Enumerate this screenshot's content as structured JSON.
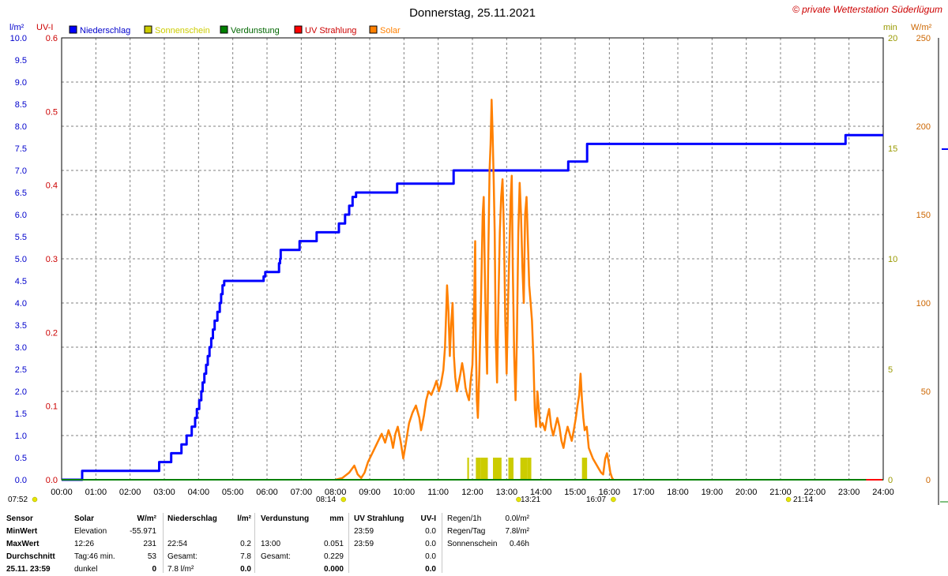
{
  "title": "Donnerstag, 25.11.2021",
  "copyright": "© private Wetterstation Süderlügum",
  "axes": {
    "left_unit_1": "l/m²",
    "left_unit_2": "UV-I",
    "right_unit_1": "min",
    "right_unit_2": "W/m²",
    "rain_ticks": [
      "0.0",
      "0.5",
      "1.0",
      "1.5",
      "2.0",
      "2.5",
      "3.0",
      "3.5",
      "4.0",
      "4.5",
      "5.0",
      "5.5",
      "6.0",
      "6.5",
      "7.0",
      "7.5",
      "8.0",
      "8.5",
      "9.0",
      "9.5",
      "10.0"
    ],
    "uv_ticks": [
      "0.0",
      "0.1",
      "0.2",
      "0.3",
      "0.4",
      "0.5",
      "0.6"
    ],
    "sun_ticks": [
      "0",
      "5",
      "10",
      "15",
      "20"
    ],
    "solar_ticks": [
      "0",
      "50",
      "100",
      "150",
      "200",
      "250"
    ],
    "time_ticks": [
      "00:00",
      "01:00",
      "02:00",
      "03:00",
      "04:00",
      "05:00",
      "06:00",
      "07:00",
      "08:00",
      "09:00",
      "10:00",
      "11:00",
      "12:00",
      "13:00",
      "14:00",
      "15:00",
      "16:00",
      "17:00",
      "18:00",
      "19:00",
      "20:00",
      "21:00",
      "22:00",
      "23:00",
      "24:00"
    ],
    "colors": {
      "rain": "#0000ff",
      "sunshine": "#cccc00",
      "evaporation": "#008000",
      "uv": "#ff0000",
      "solar": "#ff8000",
      "left_axis_rain": "#0000cc",
      "left_axis_uv": "#cc0000",
      "right_axis_sun": "#999900",
      "right_axis_solar": "#cc6600"
    }
  },
  "legend": [
    {
      "label": "Niederschlag",
      "color": "#0000ff"
    },
    {
      "label": "Sonnenschein",
      "color": "#cccc00"
    },
    {
      "label": "Verdunstung",
      "color": "#008000"
    },
    {
      "label": "UV Strahlung",
      "color": "#ff0000"
    },
    {
      "label": "Solar",
      "color": "#ff8000"
    }
  ],
  "sun_events": [
    {
      "label": "07:52",
      "time": 7.867
    },
    {
      "label": "08:14",
      "time": 8.233
    },
    {
      "label": "13:21",
      "time": 13.35
    },
    {
      "label": "16:07",
      "time": 16.117
    },
    {
      "label": "21:14",
      "time": 21.233
    }
  ],
  "chart_data": {
    "type": "line",
    "x_unit": "hour of day",
    "x_range": [
      0,
      24
    ],
    "series": [
      {
        "name": "Niederschlag",
        "axis": "rain",
        "ylim": [
          0,
          10
        ],
        "step": true,
        "points": [
          [
            0,
            0
          ],
          [
            0.6,
            0
          ],
          [
            0.6,
            0.2
          ],
          [
            2.85,
            0.2
          ],
          [
            2.85,
            0.4
          ],
          [
            3.2,
            0.4
          ],
          [
            3.2,
            0.6
          ],
          [
            3.5,
            0.6
          ],
          [
            3.5,
            0.8
          ],
          [
            3.65,
            0.8
          ],
          [
            3.65,
            1.0
          ],
          [
            3.8,
            1.0
          ],
          [
            3.8,
            1.2
          ],
          [
            3.9,
            1.2
          ],
          [
            3.9,
            1.4
          ],
          [
            3.95,
            1.4
          ],
          [
            3.95,
            1.6
          ],
          [
            4.02,
            1.6
          ],
          [
            4.02,
            1.8
          ],
          [
            4.08,
            1.8
          ],
          [
            4.08,
            2.0
          ],
          [
            4.12,
            2.0
          ],
          [
            4.12,
            2.2
          ],
          [
            4.17,
            2.2
          ],
          [
            4.17,
            2.4
          ],
          [
            4.22,
            2.4
          ],
          [
            4.22,
            2.6
          ],
          [
            4.27,
            2.6
          ],
          [
            4.27,
            2.8
          ],
          [
            4.32,
            2.8
          ],
          [
            4.32,
            3.0
          ],
          [
            4.37,
            3.0
          ],
          [
            4.37,
            3.2
          ],
          [
            4.42,
            3.2
          ],
          [
            4.42,
            3.4
          ],
          [
            4.47,
            3.4
          ],
          [
            4.47,
            3.6
          ],
          [
            4.55,
            3.6
          ],
          [
            4.55,
            3.8
          ],
          [
            4.62,
            3.8
          ],
          [
            4.62,
            4.0
          ],
          [
            4.66,
            4.0
          ],
          [
            4.66,
            4.2
          ],
          [
            4.7,
            4.2
          ],
          [
            4.7,
            4.4
          ],
          [
            4.75,
            4.4
          ],
          [
            4.75,
            4.5
          ],
          [
            5.9,
            4.5
          ],
          [
            5.9,
            4.6
          ],
          [
            5.95,
            4.6
          ],
          [
            5.95,
            4.7
          ],
          [
            6.35,
            4.7
          ],
          [
            6.35,
            4.9
          ],
          [
            6.38,
            4.9
          ],
          [
            6.38,
            5.0
          ],
          [
            6.4,
            5.0
          ],
          [
            6.4,
            5.2
          ],
          [
            6.95,
            5.2
          ],
          [
            6.95,
            5.4
          ],
          [
            7.45,
            5.4
          ],
          [
            7.45,
            5.6
          ],
          [
            8.1,
            5.6
          ],
          [
            8.1,
            5.8
          ],
          [
            8.28,
            5.8
          ],
          [
            8.28,
            6.0
          ],
          [
            8.4,
            6.0
          ],
          [
            8.4,
            6.2
          ],
          [
            8.5,
            6.2
          ],
          [
            8.5,
            6.4
          ],
          [
            8.6,
            6.4
          ],
          [
            8.6,
            6.5
          ],
          [
            9.8,
            6.5
          ],
          [
            9.8,
            6.7
          ],
          [
            11.45,
            6.7
          ],
          [
            11.45,
            7.0
          ],
          [
            14.8,
            7.0
          ],
          [
            14.8,
            7.2
          ],
          [
            15.35,
            7.2
          ],
          [
            15.35,
            7.6
          ],
          [
            22.9,
            7.6
          ],
          [
            22.9,
            7.8
          ],
          [
            24,
            7.8
          ]
        ]
      },
      {
        "name": "Solar",
        "axis": "solar",
        "ylim": [
          0,
          250
        ],
        "points": [
          [
            8.0,
            0
          ],
          [
            8.2,
            1
          ],
          [
            8.4,
            4
          ],
          [
            8.55,
            8
          ],
          [
            8.65,
            3
          ],
          [
            8.75,
            1
          ],
          [
            8.85,
            4
          ],
          [
            8.95,
            10
          ],
          [
            9.05,
            14
          ],
          [
            9.15,
            18
          ],
          [
            9.25,
            22
          ],
          [
            9.35,
            26
          ],
          [
            9.45,
            21
          ],
          [
            9.55,
            28
          ],
          [
            9.62,
            24
          ],
          [
            9.68,
            18
          ],
          [
            9.75,
            26
          ],
          [
            9.82,
            30
          ],
          [
            9.9,
            22
          ],
          [
            9.98,
            12
          ],
          [
            10.05,
            20
          ],
          [
            10.15,
            32
          ],
          [
            10.25,
            38
          ],
          [
            10.35,
            42
          ],
          [
            10.45,
            35
          ],
          [
            10.5,
            28
          ],
          [
            10.58,
            36
          ],
          [
            10.65,
            45
          ],
          [
            10.72,
            50
          ],
          [
            10.8,
            48
          ],
          [
            10.88,
            52
          ],
          [
            10.95,
            56
          ],
          [
            11.02,
            50
          ],
          [
            11.08,
            54
          ],
          [
            11.15,
            62
          ],
          [
            11.2,
            75
          ],
          [
            11.23,
            92
          ],
          [
            11.26,
            110
          ],
          [
            11.3,
            95
          ],
          [
            11.34,
            70
          ],
          [
            11.38,
            88
          ],
          [
            11.42,
            100
          ],
          [
            11.46,
            70
          ],
          [
            11.5,
            58
          ],
          [
            11.55,
            50
          ],
          [
            11.6,
            55
          ],
          [
            11.65,
            60
          ],
          [
            11.7,
            66
          ],
          [
            11.75,
            60
          ],
          [
            11.8,
            52
          ],
          [
            11.85,
            48
          ],
          [
            11.9,
            45
          ],
          [
            11.95,
            56
          ],
          [
            12.0,
            65
          ],
          [
            12.05,
            100
          ],
          [
            12.08,
            135
          ],
          [
            12.1,
            80
          ],
          [
            12.13,
            45
          ],
          [
            12.16,
            35
          ],
          [
            12.2,
            60
          ],
          [
            12.25,
            100
          ],
          [
            12.3,
            150
          ],
          [
            12.33,
            160
          ],
          [
            12.36,
            120
          ],
          [
            12.4,
            80
          ],
          [
            12.43,
            60
          ],
          [
            12.46,
            120
          ],
          [
            12.5,
            175
          ],
          [
            12.53,
            190
          ],
          [
            12.56,
            215
          ],
          [
            12.59,
            195
          ],
          [
            12.62,
            170
          ],
          [
            12.65,
            140
          ],
          [
            12.68,
            80
          ],
          [
            12.72,
            55
          ],
          [
            12.76,
            100
          ],
          [
            12.8,
            140
          ],
          [
            12.84,
            160
          ],
          [
            12.88,
            170
          ],
          [
            12.92,
            140
          ],
          [
            12.96,
            90
          ],
          [
            13.0,
            60
          ],
          [
            13.04,
            100
          ],
          [
            13.08,
            130
          ],
          [
            13.12,
            160
          ],
          [
            13.15,
            172
          ],
          [
            13.18,
            120
          ],
          [
            13.22,
            70
          ],
          [
            13.26,
            45
          ],
          [
            13.3,
            80
          ],
          [
            13.34,
            140
          ],
          [
            13.38,
            168
          ],
          [
            13.42,
            150
          ],
          [
            13.46,
            120
          ],
          [
            13.5,
            100
          ],
          [
            13.54,
            150
          ],
          [
            13.58,
            160
          ],
          [
            13.62,
            135
          ],
          [
            13.66,
            110
          ],
          [
            13.7,
            100
          ],
          [
            13.74,
            90
          ],
          [
            13.78,
            70
          ],
          [
            13.82,
            40
          ],
          [
            13.86,
            30
          ],
          [
            13.9,
            50
          ],
          [
            13.94,
            40
          ],
          [
            13.98,
            30
          ],
          [
            14.05,
            32
          ],
          [
            14.12,
            28
          ],
          [
            14.18,
            35
          ],
          [
            14.24,
            40
          ],
          [
            14.3,
            30
          ],
          [
            14.36,
            25
          ],
          [
            14.42,
            30
          ],
          [
            14.48,
            35
          ],
          [
            14.54,
            30
          ],
          [
            14.6,
            22
          ],
          [
            14.66,
            18
          ],
          [
            14.72,
            25
          ],
          [
            14.78,
            30
          ],
          [
            14.84,
            26
          ],
          [
            14.9,
            22
          ],
          [
            14.96,
            28
          ],
          [
            15.02,
            35
          ],
          [
            15.07,
            42
          ],
          [
            15.12,
            48
          ],
          [
            15.16,
            60
          ],
          [
            15.2,
            45
          ],
          [
            15.24,
            35
          ],
          [
            15.28,
            28
          ],
          [
            15.34,
            30
          ],
          [
            15.4,
            18
          ],
          [
            15.46,
            15
          ],
          [
            15.52,
            12
          ],
          [
            15.58,
            10
          ],
          [
            15.64,
            8
          ],
          [
            15.7,
            6
          ],
          [
            15.76,
            4
          ],
          [
            15.82,
            3
          ],
          [
            15.88,
            12
          ],
          [
            15.93,
            15
          ],
          [
            15.98,
            10
          ],
          [
            16.03,
            4
          ],
          [
            16.08,
            1
          ],
          [
            16.12,
            0
          ]
        ]
      },
      {
        "name": "Sonnenschein",
        "type": "bar",
        "axis": "sun",
        "ylim": [
          0,
          20
        ],
        "bars": [
          [
            11.85,
            11.9,
            1
          ],
          [
            12.1,
            12.25,
            1
          ],
          [
            12.25,
            12.45,
            1
          ],
          [
            12.6,
            12.85,
            1
          ],
          [
            13.05,
            13.2,
            1
          ],
          [
            13.4,
            13.6,
            1
          ],
          [
            13.6,
            13.72,
            1
          ],
          [
            15.2,
            15.35,
            1
          ]
        ]
      },
      {
        "name": "Verdunstung",
        "axis": "rain",
        "ylim": [
          0,
          10
        ],
        "points": [
          [
            0,
            0
          ],
          [
            24,
            0
          ]
        ]
      },
      {
        "name": "UV Strahlung",
        "axis": "uv",
        "ylim": [
          0,
          0.6
        ],
        "points": [
          [
            23.5,
            0
          ],
          [
            23.98,
            0
          ]
        ]
      }
    ]
  },
  "table": {
    "rows": [
      {
        "label": "Sensor",
        "solar_a": "Solar",
        "solar_b": "W/m²",
        "rain_a": "Niederschlag",
        "rain_b": "l/m²",
        "evap_a": "Verdunstung",
        "evap_b": "mm",
        "uv_a": "UV Strahlung",
        "uv_b": "UV-I",
        "ext_a": "Regen/1h",
        "ext_b": "0.0l/m²"
      },
      {
        "label": "MinWert",
        "solar_a": "Elevation",
        "solar_b": "-55.971",
        "rain_a": "",
        "rain_b": "",
        "evap_a": "",
        "evap_b": "",
        "uv_a": "23:59",
        "uv_b": "0.0",
        "ext_a": "Regen/Tag",
        "ext_b": "7.8l/m²"
      },
      {
        "label": "MaxWert",
        "solar_a": "12:26",
        "solar_b": "231",
        "rain_a": "22:54",
        "rain_b": "0.2",
        "evap_a": "13:00",
        "evap_b": "0.051",
        "uv_a": "23:59",
        "uv_b": "0.0",
        "ext_a": "Sonnenschein",
        "ext_b": "0.46h"
      },
      {
        "label": "Durchschnitt",
        "solar_a": "Tag:46 min.",
        "solar_b": "53",
        "rain_a": "Gesamt:",
        "rain_b": "7.8",
        "evap_a": "Gesamt:",
        "evap_b": "0.229",
        "uv_a": "",
        "uv_b": "0.0",
        "ext_a": "",
        "ext_b": ""
      },
      {
        "label": "25.11. 23:59",
        "solar_a": "dunkel",
        "solar_b": "0",
        "rain_a": "7.8 l/m²",
        "rain_b": "0.0",
        "evap_a": "",
        "evap_b": "0.000",
        "uv_a": "",
        "uv_b": "0.0",
        "ext_a": "",
        "ext_b": ""
      }
    ]
  }
}
